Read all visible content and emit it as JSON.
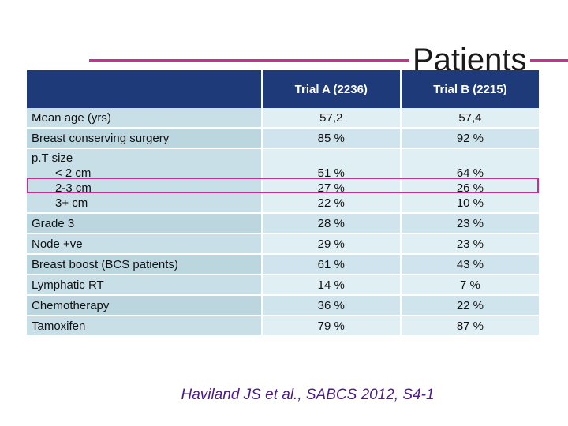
{
  "title": "Patients",
  "table": {
    "headers": [
      "",
      "Trial A (2236)",
      "Trial B (2215)"
    ],
    "rows": [
      {
        "label": "Mean age (yrs)",
        "a": "57,2",
        "b": "57,4"
      },
      {
        "label": "Breast conserving surgery",
        "a": "85 %",
        "b": "92 %"
      },
      {
        "label": "p.T size",
        "sub": [
          "< 2 cm",
          "2-3 cm",
          "3+ cm"
        ],
        "a": [
          "51 %",
          "27 %",
          "22 %"
        ],
        "b": [
          "64 %",
          "26 %",
          "10 %"
        ]
      },
      {
        "label": "Grade 3",
        "a": "28 %",
        "b": "23 %"
      },
      {
        "label": "Node +ve",
        "a": "29 %",
        "b": "23 %"
      },
      {
        "label": "Breast boost (BCS patients)",
        "a": "61 %",
        "b": "43 %"
      },
      {
        "label": "Lymphatic RT",
        "a": "14 %",
        "b": "7 %"
      },
      {
        "label": "Chemotherapy",
        "a": "36 %",
        "b": "22 %"
      },
      {
        "label": "Tamoxifen",
        "a": "79 %",
        "b": "87 %"
      }
    ]
  },
  "citation": "Haviland JS et al., SABCS 2012,  S4-1",
  "colors": {
    "header": "#1f3a78",
    "accent": "#c4318f",
    "citation": "#4b1a8c"
  }
}
